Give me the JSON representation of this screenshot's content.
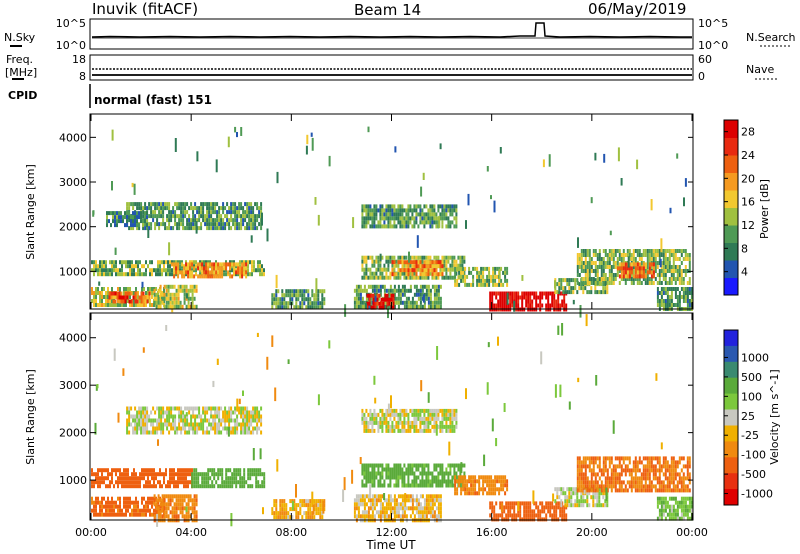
{
  "header": {
    "station": "Inuvik (fitACF)",
    "beam": "Beam 14",
    "date": "06/May/2019"
  },
  "strip_labels": {
    "nsky": "N.Sky",
    "nsearch": "N.Search",
    "freq": "Freq.",
    "mhz": "[MHz]",
    "nave": "Nave",
    "cpid": "CPID",
    "cpid_value": "normal (fast) 151",
    "noise_hi_left": "10^5",
    "noise_lo_left": "10^0",
    "noise_hi_right": "10^5",
    "noise_lo_right": "10^0",
    "freq_hi": "18",
    "freq_lo": "8",
    "nave_hi": "60",
    "nave_lo": "0"
  },
  "colors": {
    "power_scale": [
      "#1a1aff",
      "#2255b0",
      "#2f7a55",
      "#4f9a55",
      "#a0c040",
      "#f2c830",
      "#f59a20",
      "#ee6010",
      "#e82a10",
      "#dd0000"
    ],
    "velocity_scale": [
      "#2222dd",
      "#2a58b0",
      "#3a8a70",
      "#5aaa3a",
      "#7cc83c",
      "#c8c8c0",
      "#f0b000",
      "#f08a10",
      "#ee6010",
      "#e83010",
      "#e00000"
    ]
  },
  "chart_data": [
    {
      "type": "heatmap",
      "name": "power",
      "xlabel": "",
      "ylabel": "Slant Range [km]",
      "x_ticks": [
        "00:00",
        "04:00",
        "08:00",
        "12:00",
        "16:00",
        "20:00",
        "00:00"
      ],
      "xlim_hours": [
        0,
        24
      ],
      "y_ticks": [
        1000,
        2000,
        3000,
        4000
      ],
      "ylim": [
        180,
        4500
      ],
      "colorbar_label": "Power [dB]",
      "colorbar_ticks": [
        4,
        8,
        12,
        16,
        20,
        24,
        28
      ],
      "colorbar_range": [
        0,
        30
      ],
      "regions": [
        {
          "t0": 0.0,
          "t1": 2.9,
          "r0": 250,
          "r1": 650,
          "val": 14
        },
        {
          "t0": 0.7,
          "t1": 2.3,
          "r0": 330,
          "r1": 550,
          "val": 24
        },
        {
          "t0": 0.0,
          "t1": 6.9,
          "r0": 900,
          "r1": 1250,
          "val": 12
        },
        {
          "t0": 3.2,
          "t1": 6.2,
          "r0": 930,
          "r1": 1200,
          "val": 20
        },
        {
          "t0": 1.4,
          "t1": 6.8,
          "r0": 2000,
          "r1": 2550,
          "val": 10
        },
        {
          "t0": 0.6,
          "t1": 2.2,
          "r0": 2000,
          "r1": 2350,
          "val": 8
        },
        {
          "t0": 2.5,
          "t1": 4.2,
          "r0": 180,
          "r1": 700,
          "val": 14
        },
        {
          "t0": 7.2,
          "t1": 9.3,
          "r0": 200,
          "r1": 600,
          "val": 10
        },
        {
          "t0": 10.8,
          "t1": 14.6,
          "r0": 2000,
          "r1": 2500,
          "val": 10
        },
        {
          "t0": 10.8,
          "t1": 14.9,
          "r0": 850,
          "r1": 1350,
          "val": 12
        },
        {
          "t0": 12.0,
          "t1": 14.0,
          "r0": 950,
          "r1": 1250,
          "val": 20
        },
        {
          "t0": 10.5,
          "t1": 14.0,
          "r0": 180,
          "r1": 700,
          "val": 10
        },
        {
          "t0": 11.0,
          "t1": 12.1,
          "r0": 180,
          "r1": 500,
          "val": 28
        },
        {
          "t0": 14.5,
          "t1": 16.6,
          "r0": 700,
          "r1": 1100,
          "val": 12
        },
        {
          "t0": 15.9,
          "t1": 19.0,
          "r0": 180,
          "r1": 550,
          "val": 30
        },
        {
          "t0": 18.5,
          "t1": 20.6,
          "r0": 500,
          "r1": 850,
          "val": 12
        },
        {
          "t0": 19.4,
          "t1": 23.9,
          "r0": 750,
          "r1": 1500,
          "val": 12
        },
        {
          "t0": 21.0,
          "t1": 22.5,
          "r0": 850,
          "r1": 1200,
          "val": 22
        },
        {
          "t0": 22.6,
          "t1": 24.0,
          "r0": 180,
          "r1": 650,
          "val": 10
        }
      ]
    },
    {
      "type": "heatmap",
      "name": "velocity",
      "xlabel": "Time UT",
      "ylabel": "Slant Range [km]",
      "x_ticks": [
        "00:00",
        "04:00",
        "08:00",
        "12:00",
        "16:00",
        "20:00",
        "00:00"
      ],
      "xlim_hours": [
        0,
        24
      ],
      "y_ticks": [
        1000,
        2000,
        3000,
        4000
      ],
      "ylim": [
        180,
        4500
      ],
      "colorbar_label": "Velocity [m s^-1]",
      "colorbar_ticks": [
        "1000",
        "500",
        "100",
        "25",
        "-25",
        "-100",
        "-500",
        "-1000"
      ],
      "regions": [
        {
          "t0": 0.0,
          "t1": 2.9,
          "r0": 250,
          "r1": 650,
          "val": -300
        },
        {
          "t0": 0.0,
          "t1": 4.0,
          "r0": 900,
          "r1": 1250,
          "val": -400
        },
        {
          "t0": 4.0,
          "t1": 6.9,
          "r0": 900,
          "r1": 1250,
          "val": 180
        },
        {
          "t0": 1.4,
          "t1": 6.8,
          "r0": 2000,
          "r1": 2550,
          "val": 5
        },
        {
          "t0": 2.5,
          "t1": 4.2,
          "r0": 180,
          "r1": 700,
          "val": -200
        },
        {
          "t0": 7.2,
          "t1": 9.3,
          "r0": 200,
          "r1": 600,
          "val": -80
        },
        {
          "t0": 10.8,
          "t1": 14.6,
          "r0": 2000,
          "r1": 2500,
          "val": 5
        },
        {
          "t0": 10.8,
          "t1": 14.9,
          "r0": 850,
          "r1": 1350,
          "val": 150
        },
        {
          "t0": 10.5,
          "t1": 14.0,
          "r0": 180,
          "r1": 700,
          "val": -60
        },
        {
          "t0": 14.5,
          "t1": 16.6,
          "r0": 700,
          "r1": 1100,
          "val": -200
        },
        {
          "t0": 15.9,
          "t1": 19.0,
          "r0": 180,
          "r1": 550,
          "val": -400
        },
        {
          "t0": 18.5,
          "t1": 20.6,
          "r0": 500,
          "r1": 850,
          "val": 5
        },
        {
          "t0": 19.4,
          "t1": 23.9,
          "r0": 750,
          "r1": 1500,
          "val": -250
        },
        {
          "t0": 22.6,
          "t1": 24.0,
          "r0": 180,
          "r1": 650,
          "val": 80
        }
      ]
    }
  ]
}
